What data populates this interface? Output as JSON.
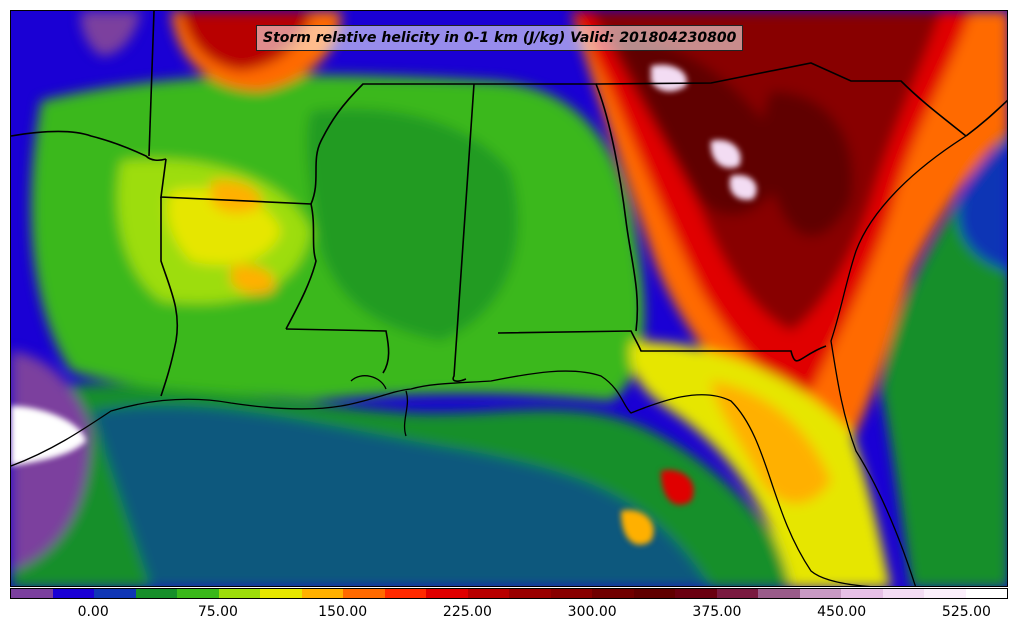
{
  "title": "Storm relative helicity in 0-1 km (J/kg) Valid: 201804230800",
  "colorbar": {
    "colors": [
      "#7b3f9e",
      "#1a00d4",
      "#0f36b5",
      "#168f2a",
      "#3ab81a",
      "#9ddd0b",
      "#e6e600",
      "#ffb000",
      "#ff6a00",
      "#ff2a00",
      "#e00000",
      "#b80000",
      "#9a0000",
      "#880000",
      "#700000",
      "#600000",
      "#6a0010",
      "#7a1a40",
      "#9a5c8a",
      "#c89ac4",
      "#e6c0e6",
      "#f3dcf3",
      "#fbeffb",
      "#ffffff"
    ],
    "ticks": [
      "0.00",
      "75.00",
      "150.00",
      "225.00",
      "300.00",
      "375.00",
      "450.00",
      "525.00"
    ]
  }
}
